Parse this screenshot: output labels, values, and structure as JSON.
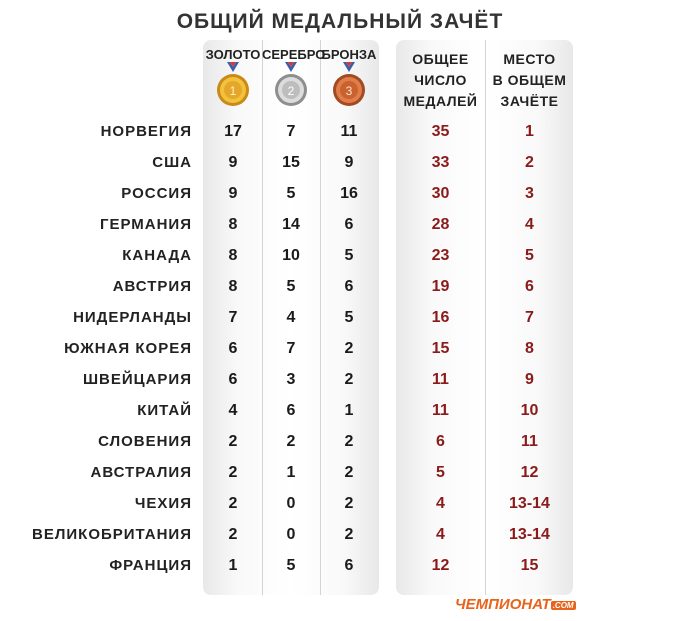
{
  "title": "ОБЩИЙ МЕДАЛЬНЫЙ ЗАЧЁТ",
  "headers": {
    "gold": "ЗОЛОТО",
    "silver": "СЕРЕБРО",
    "bronze": "БРОНЗА",
    "total": [
      "ОБЩЕЕ",
      "ЧИСЛО",
      "МЕДАЛЕЙ"
    ],
    "rank": [
      "МЕСТО",
      "В ОБЩЕМ",
      "ЗАЧЁТЕ"
    ]
  },
  "medal_icons": {
    "gold": {
      "number": "1",
      "color": "#e0a52a"
    },
    "silver": {
      "number": "2",
      "color": "#b5b5b5"
    },
    "bronze": {
      "number": "3",
      "color": "#d06a3c"
    }
  },
  "rows": [
    {
      "country": "НОРВЕГИЯ",
      "gold": "17",
      "silver": "7",
      "bronze": "11",
      "total": "35",
      "rank": "1"
    },
    {
      "country": "США",
      "gold": "9",
      "silver": "15",
      "bronze": "9",
      "total": "33",
      "rank": "2"
    },
    {
      "country": "РОССИЯ",
      "gold": "9",
      "silver": "5",
      "bronze": "16",
      "total": "30",
      "rank": "3"
    },
    {
      "country": "ГЕРМАНИЯ",
      "gold": "8",
      "silver": "14",
      "bronze": "6",
      "total": "28",
      "rank": "4"
    },
    {
      "country": "КАНАДА",
      "gold": "8",
      "silver": "10",
      "bronze": "5",
      "total": "23",
      "rank": "5"
    },
    {
      "country": "АВСТРИЯ",
      "gold": "8",
      "silver": "5",
      "bronze": "6",
      "total": "19",
      "rank": "6"
    },
    {
      "country": "НИДЕРЛАНДЫ",
      "gold": "7",
      "silver": "4",
      "bronze": "5",
      "total": "16",
      "rank": "7"
    },
    {
      "country": "ЮЖНАЯ КОРЕЯ",
      "gold": "6",
      "silver": "7",
      "bronze": "2",
      "total": "15",
      "rank": "8"
    },
    {
      "country": "ШВЕЙЦАРИЯ",
      "gold": "6",
      "silver": "3",
      "bronze": "2",
      "total": "11",
      "rank": "9"
    },
    {
      "country": "КИТАЙ",
      "gold": "4",
      "silver": "6",
      "bronze": "1",
      "total": "11",
      "rank": "10"
    },
    {
      "country": "СЛОВЕНИЯ",
      "gold": "2",
      "silver": "2",
      "bronze": "2",
      "total": "6",
      "rank": "11"
    },
    {
      "country": "АВСТРАЛИЯ",
      "gold": "2",
      "silver": "1",
      "bronze": "2",
      "total": "5",
      "rank": "12"
    },
    {
      "country": "ЧЕХИЯ",
      "gold": "2",
      "silver": "0",
      "bronze": "2",
      "total": "4",
      "rank": "13-14"
    },
    {
      "country": "ВЕЛИКОБРИТАНИЯ",
      "gold": "2",
      "silver": "0",
      "bronze": "2",
      "total": "4",
      "rank": "13-14"
    },
    {
      "country": "ФРАНЦИЯ",
      "gold": "1",
      "silver": "5",
      "bronze": "6",
      "total": "12",
      "rank": "15"
    }
  ],
  "logo": {
    "text": "ЧЕМПИОНАТ",
    "domain": ".COM",
    "color": "#e8641b"
  },
  "colors": {
    "accent_red": "#8b1a1a"
  }
}
